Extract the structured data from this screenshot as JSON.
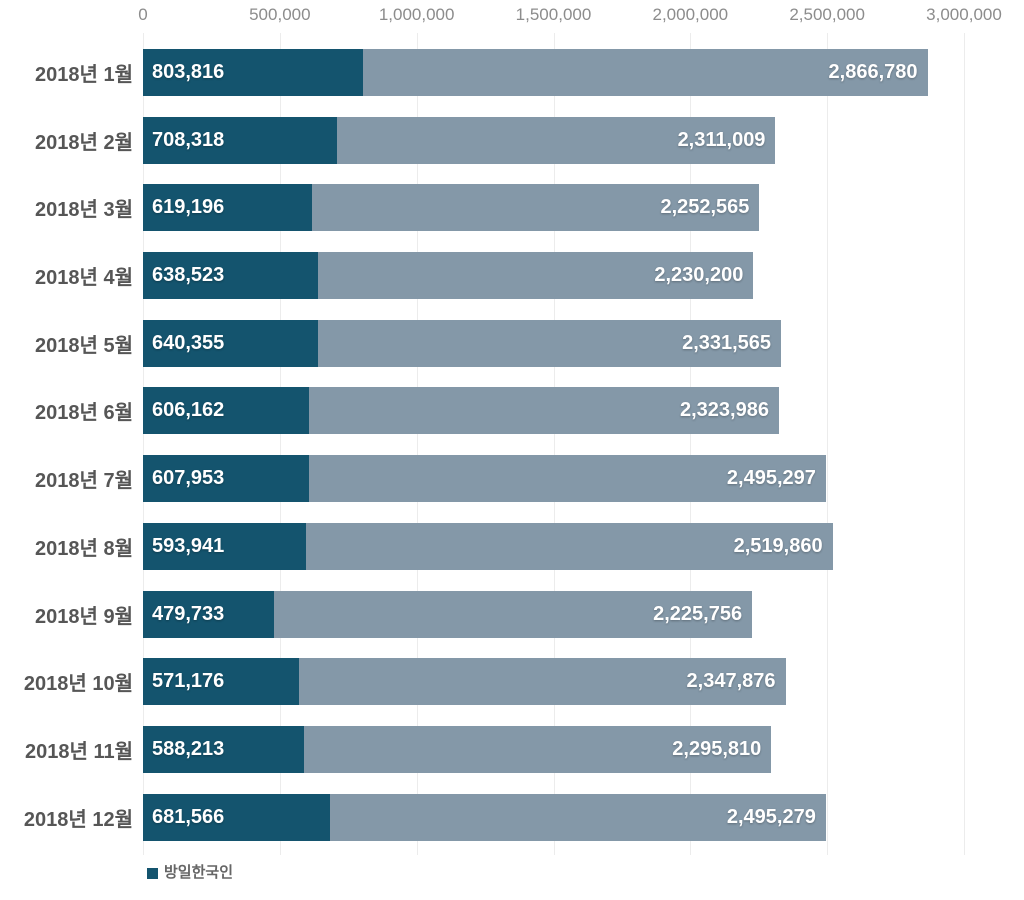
{
  "chart_data": {
    "type": "bar",
    "orientation": "horizontal",
    "title": "",
    "categories": [
      "2018년 1월",
      "2018년 2월",
      "2018년 3월",
      "2018년 4월",
      "2018년 5월",
      "2018년 6월",
      "2018년 7월",
      "2018년 8월",
      "2018년 9월",
      "2018년 10월",
      "2018년 11월",
      "2018년 12월"
    ],
    "series": [
      {
        "name": "방일한국인",
        "color": "#14546e",
        "show_in_legend": true,
        "values": [
          803816,
          708318,
          619196,
          638523,
          640355,
          606162,
          607953,
          593941,
          479733,
          571176,
          588213,
          681566
        ]
      },
      {
        "name": "",
        "color": "#8498a8",
        "show_in_legend": false,
        "values": [
          2866780,
          2311009,
          2252565,
          2230200,
          2331565,
          2323986,
          2495297,
          2519860,
          2225756,
          2347876,
          2295810,
          2495279
        ]
      }
    ],
    "value_labels": {
      "korean": [
        "803,816",
        "708,318",
        "619,196",
        "638,523",
        "640,355",
        "606,162",
        "607,953",
        "593,941",
        "479,733",
        "571,176",
        "588,213",
        "681,566"
      ],
      "total": [
        "2,866,780",
        "2,311,009",
        "2,252,565",
        "2,230,200",
        "2,331,565",
        "2,323,986",
        "2,495,297",
        "2,519,860",
        "2,225,756",
        "2,347,876",
        "2,295,810",
        "2,495,279"
      ]
    },
    "xlim": [
      0,
      3000000
    ],
    "x_ticks": [
      0,
      500000,
      1000000,
      1500000,
      2000000,
      2500000,
      3000000
    ],
    "x_tick_labels": [
      "0",
      "500,000",
      "1,000,000",
      "1,500,000",
      "2,000,000",
      "2,500,000",
      "3,000,000"
    ],
    "axis_position": "top",
    "grid": "vertical",
    "legend": {
      "position": "bottom-left",
      "items": [
        {
          "label": "방일한국인",
          "color": "#14546e"
        }
      ]
    }
  }
}
